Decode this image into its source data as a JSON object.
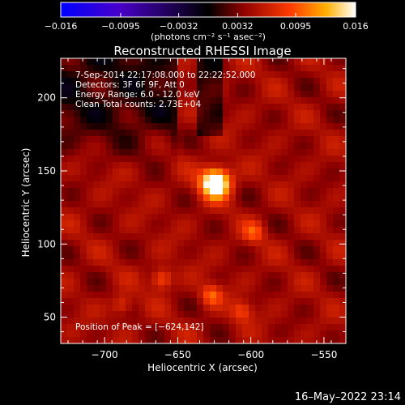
{
  "chart_data": {
    "type": "heatmap",
    "title": "Reconstructed RHESSI Image",
    "xlabel": "Heliocentric X (arcsec)",
    "ylabel": "Heliocentric Y (arcsec)",
    "xlim": [
      -730,
      -535
    ],
    "ylim": [
      32,
      227
    ],
    "x_ticks": [
      -700,
      -650,
      -600,
      -550
    ],
    "x_tick_labels": [
      "−700",
      "−650",
      "−600",
      "−550"
    ],
    "y_ticks": [
      50,
      100,
      150,
      200
    ],
    "y_tick_labels": [
      "50",
      "100",
      "150",
      "200"
    ],
    "colorbar": {
      "range": [
        -0.016,
        0.016
      ],
      "ticks": [
        -0.016,
        -0.0095,
        -0.0032,
        0.0032,
        0.0095,
        0.016
      ],
      "tick_labels": [
        "−0.016",
        "−0.0095",
        "−0.0032",
        "0.0032",
        "0.0095",
        "0.016"
      ],
      "unit_label": "(photons cm⁻² s⁻¹ asec⁻²)",
      "colormap": [
        "#0000ff",
        "#5000c0",
        "#000000",
        "#800000",
        "#ff3000",
        "#ffa000",
        "#ffffff"
      ]
    },
    "annotations": [
      " 7-Sep-2014 22:17:08.000 to 22:22:52.000",
      "Detectors: 3F 6F 9F, Att 0",
      "Energy Range: 6.0 - 12.0 keV",
      "Clean    Total counts: 2.73E+04"
    ],
    "peak_label": "Position of Peak = [−624,142]",
    "peak": {
      "x": -624,
      "y": 142,
      "value": 0.016
    },
    "sources": [
      {
        "x": -624,
        "y": 142,
        "sigma": 7,
        "value": 0.016
      },
      {
        "x": -661,
        "y": 76,
        "sigma": 5,
        "value": 0.006
      },
      {
        "x": -627,
        "y": 65,
        "sigma": 5,
        "value": 0.0055
      },
      {
        "x": -606,
        "y": 54,
        "sigma": 5,
        "value": 0.0045
      },
      {
        "x": -688,
        "y": 58,
        "sigma": 5,
        "value": 0.004
      },
      {
        "x": -598,
        "y": 108,
        "sigma": 5,
        "value": 0.0045
      }
    ]
  },
  "timestamp": "16–May–2022 23:14"
}
